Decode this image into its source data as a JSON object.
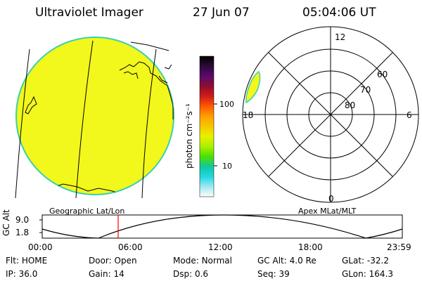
{
  "header": {
    "title": "Ultraviolet Imager",
    "date": "27 Jun 07",
    "time": "05:04:06 UT"
  },
  "colorbar": {
    "unit_label": "photon cm⁻²s⁻¹",
    "ticks": [
      "100",
      "10"
    ],
    "stops": [
      "#000000",
      "#2d0a3a",
      "#5a0a6e",
      "#8c0f2e",
      "#d21a1a",
      "#ff5a00",
      "#ff9f00",
      "#f5c800",
      "#e8f000",
      "#aaf000",
      "#4ee000",
      "#10c8a0",
      "#20d8e0",
      "#a0e8f0",
      "#ffffff"
    ]
  },
  "geo_panel": {
    "label": "Geographic Lat/Lon",
    "fill_color": "#f2f71c",
    "edge_color": "#3ad0b0"
  },
  "polar_plot": {
    "label": "Apex MLat/MLT",
    "mlt_labels": {
      "top": "12",
      "left": "18",
      "right": "6",
      "bottom": "0"
    },
    "lat_labels": [
      "60",
      "70",
      "80"
    ]
  },
  "timeline": {
    "y_label": "GC Alt",
    "y_ticks": [
      "9.0",
      "1.8"
    ],
    "x_ticks": [
      "00:00",
      "06:00",
      "12:00",
      "18:00",
      "23:59"
    ],
    "marker_time": "05:04",
    "marker_color": "#ff0000"
  },
  "status": {
    "row1": [
      {
        "label": "Flt:",
        "value": "HOME"
      },
      {
        "label": "Door:",
        "value": "Open"
      },
      {
        "label": "Mode:",
        "value": "Normal"
      },
      {
        "label": "GC Alt:",
        "value": "4.0 Re"
      },
      {
        "label": "GLat:",
        "value": "-32.2"
      }
    ],
    "row2": [
      {
        "label": "IP:",
        "value": "36.0"
      },
      {
        "label": "Gain:",
        "value": "14"
      },
      {
        "label": "Dsp:",
        "value": "0.6"
      },
      {
        "label": "Seq:",
        "value": "39"
      },
      {
        "label": "GLon:",
        "value": "164.3"
      }
    ]
  }
}
